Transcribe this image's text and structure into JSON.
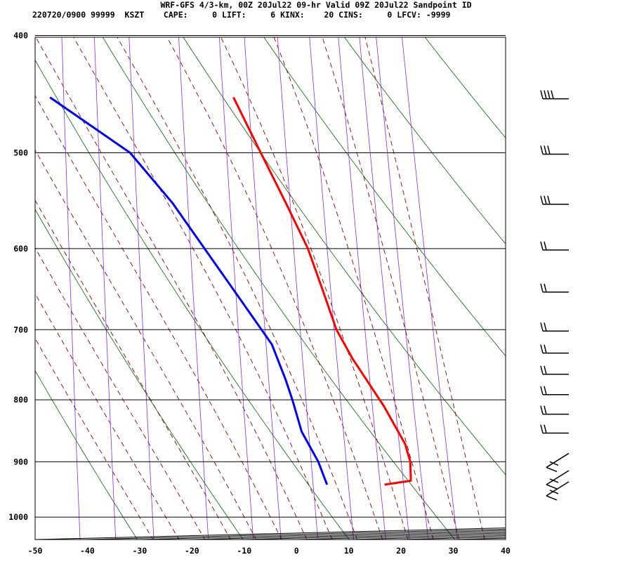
{
  "header": {
    "line1": "WRF-GFS 4/3-km, 00Z 20Jul22 09-hr Valid 09Z 20Jul22 Sandpoint ID",
    "line2": "220720/0900 99999  KSZT    CAPE:     0 LIFT:     6 KINX:    20 CINS:     0 LFCV: -9999"
  },
  "chart_data": {
    "type": "line",
    "title": "WRF-GFS 4/3-km, 00Z 20Jul22 09-hr Valid 09Z 20Jul22 Sandpoint ID",
    "xlabel": "",
    "ylabel": "",
    "xlim": [
      -50,
      40
    ],
    "ylim": [
      1040,
      400
    ],
    "y_scale": "log",
    "skew": true,
    "grid": true,
    "pressure_ticks": [
      400,
      500,
      600,
      700,
      800,
      900,
      1000
    ],
    "temperature_ticks": [
      -50,
      -40,
      -30,
      -20,
      -10,
      0,
      10,
      20,
      30,
      40
    ],
    "series": [
      {
        "role": "temperature",
        "color": "#ff0000",
        "points": [
          {
            "p": 940,
            "t": 16.5
          },
          {
            "p": 933,
            "t": 21.5
          },
          {
            "p": 900,
            "t": 21.2
          },
          {
            "p": 870,
            "t": 20.0
          },
          {
            "p": 810,
            "t": 15.6
          },
          {
            "p": 740,
            "t": 9.1
          },
          {
            "p": 700,
            "t": 5.7
          },
          {
            "p": 650,
            "t": 2.7
          },
          {
            "p": 600,
            "t": -0.6
          },
          {
            "p": 550,
            "t": -5.3
          },
          {
            "p": 500,
            "t": -10.6
          },
          {
            "p": 450,
            "t": -16.4
          }
        ]
      },
      {
        "role": "dewpoint",
        "color": "#0000ff",
        "points": [
          {
            "p": 940,
            "t": 5.5
          },
          {
            "p": 900,
            "t": 3.6
          },
          {
            "p": 850,
            "t": 0.1
          },
          {
            "p": 800,
            "t": -2.0
          },
          {
            "p": 770,
            "t": -3.5
          },
          {
            "p": 720,
            "t": -6.5
          },
          {
            "p": 660,
            "t": -13.1
          },
          {
            "p": 550,
            "t": -27.0
          },
          {
            "p": 500,
            "t": -35.6
          },
          {
            "p": 450,
            "t": -51.5
          }
        ]
      }
    ],
    "background_lines": {
      "dry_adiabats_color": "#006400",
      "moist_adiabats_color": "#8b0000",
      "mixing_ratio_color": "#8a2be2"
    },
    "wind_barbs": [
      {
        "p": 450,
        "barbs": 4
      },
      {
        "p": 500,
        "barbs": 3
      },
      {
        "p": 550,
        "barbs": 3
      },
      {
        "p": 600,
        "barbs": 2
      },
      {
        "p": 650,
        "barbs": 2
      },
      {
        "p": 700,
        "barbs": 2
      },
      {
        "p": 730,
        "barbs": 2
      },
      {
        "p": 760,
        "barbs": 2
      },
      {
        "p": 790,
        "barbs": 2
      },
      {
        "p": 820,
        "barbs": 2
      },
      {
        "p": 850,
        "barbs": 2
      },
      {
        "p": 900,
        "barbs": 1
      },
      {
        "p": 930,
        "barbs": 1
      },
      {
        "p": 950,
        "barbs": 1
      }
    ]
  }
}
